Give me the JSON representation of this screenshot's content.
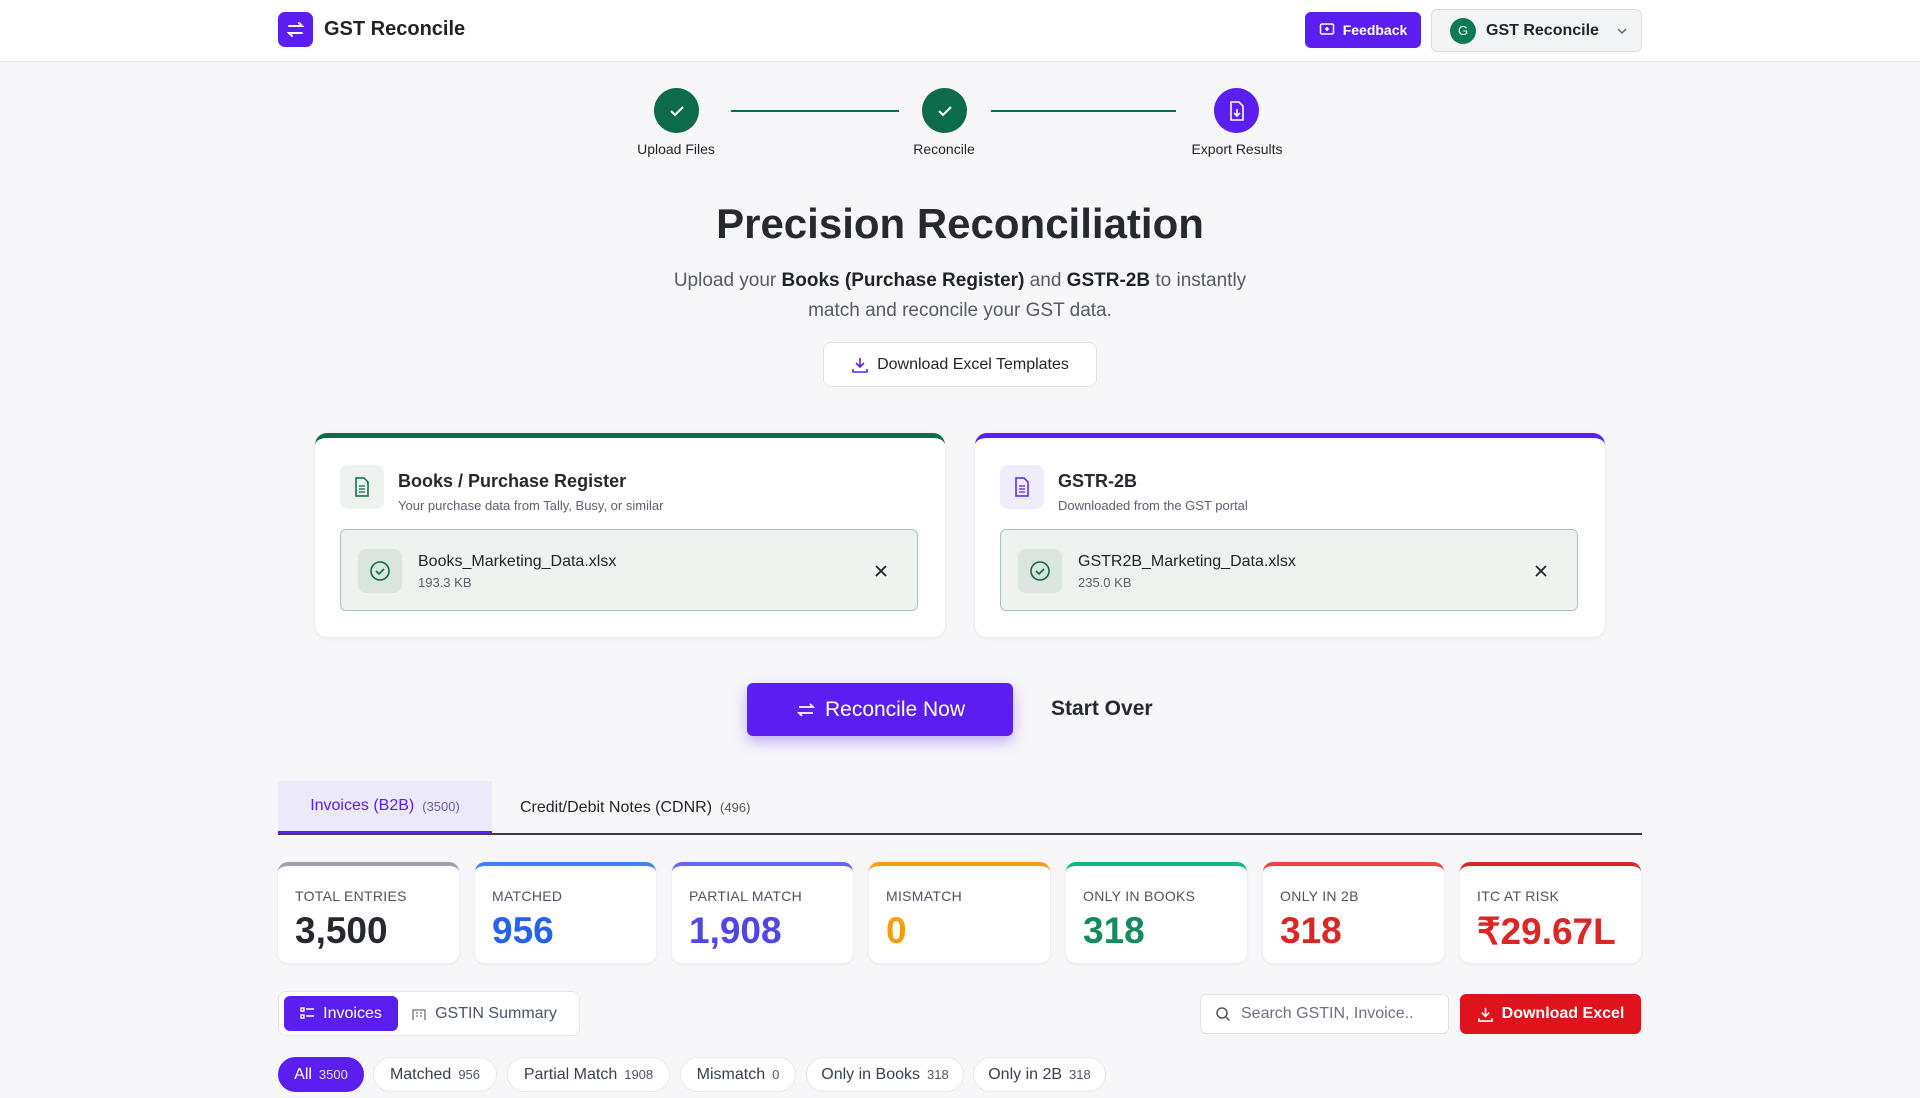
{
  "header": {
    "app_name": "GST Reconcile",
    "feedback": "Feedback",
    "account_initial": "G",
    "account_name": "GST Reconcile"
  },
  "steps": [
    {
      "label": "Upload Files"
    },
    {
      "label": "Reconcile"
    },
    {
      "label": "Export Results"
    }
  ],
  "hero": {
    "title": "Precision Reconciliation",
    "subtitle": [
      "Upload your ",
      "Books (Purchase Register)",
      " and ",
      "GSTR-2B",
      " to instantly match and reconcile your GST data."
    ],
    "templates_button": "Download Excel Templates"
  },
  "uploads": [
    {
      "title": "Books / Purchase Register",
      "subtitle": "Your purchase data from Tally, Busy, or similar",
      "file_name": "Books_Marketing_Data.xlsx",
      "file_size": "193.3 KB"
    },
    {
      "title": "GSTR-2B",
      "subtitle": "Downloaded from the GST portal",
      "file_name": "GSTR2B_Marketing_Data.xlsx",
      "file_size": "235.0 KB"
    }
  ],
  "actions": {
    "reconcile": "Reconcile Now",
    "start_over": "Start Over"
  },
  "tabs": [
    {
      "label": "Invoices (B2B)",
      "count": "(3500)"
    },
    {
      "label": "Credit/Debit Notes (CDNR)",
      "count": "(496)"
    }
  ],
  "stats": [
    {
      "label": "TOTAL ENTRIES",
      "value": "3,500"
    },
    {
      "label": "MATCHED",
      "value": "956"
    },
    {
      "label": "PARTIAL MATCH",
      "value": "1,908"
    },
    {
      "label": "MISMATCH",
      "value": "0"
    },
    {
      "label": "ONLY IN BOOKS",
      "value": "318"
    },
    {
      "label": "ONLY IN 2B",
      "value": "318"
    },
    {
      "label": "ITC AT RISK",
      "value": "₹29.67L"
    }
  ],
  "toolbar": {
    "views": [
      "Invoices",
      "GSTIN Summary"
    ],
    "search_placeholder": "Search GSTIN, Invoice..",
    "download": "Download Excel"
  },
  "filters": [
    {
      "label": "All",
      "count": "3500"
    },
    {
      "label": "Matched",
      "count": "956"
    },
    {
      "label": "Partial Match",
      "count": "1908"
    },
    {
      "label": "Mismatch",
      "count": "0"
    },
    {
      "label": "Only in Books",
      "count": "318"
    },
    {
      "label": "Only in 2B",
      "count": "318"
    }
  ]
}
